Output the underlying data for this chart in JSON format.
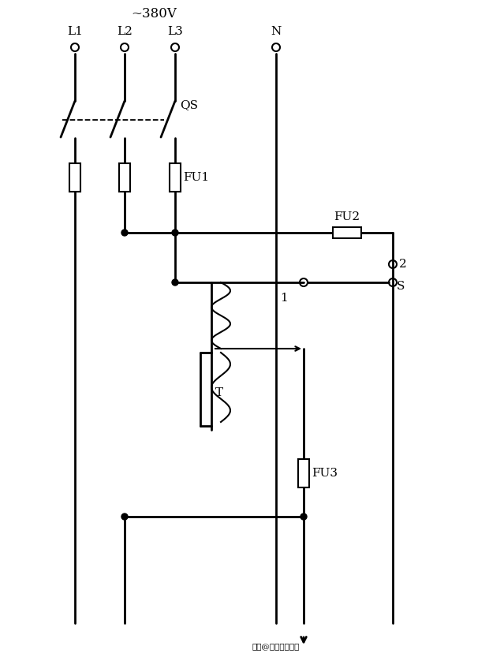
{
  "bg_color": "#ffffff",
  "line_color": "#000000",
  "line_width": 2.0,
  "fig_width": 6.2,
  "fig_height": 8.38,
  "dpi": 100,
  "labels": {
    "voltage": "~380V",
    "L1": "L1",
    "L2": "L2",
    "L3": "L3",
    "N": "N",
    "QS": "QS",
    "FU1": "FU1",
    "FU2": "FU2",
    "FU3": "FU3",
    "T": "T",
    "S": "S",
    "num1": "1",
    "num2": "2"
  },
  "watermark": "轮虫@技成电工课堂"
}
